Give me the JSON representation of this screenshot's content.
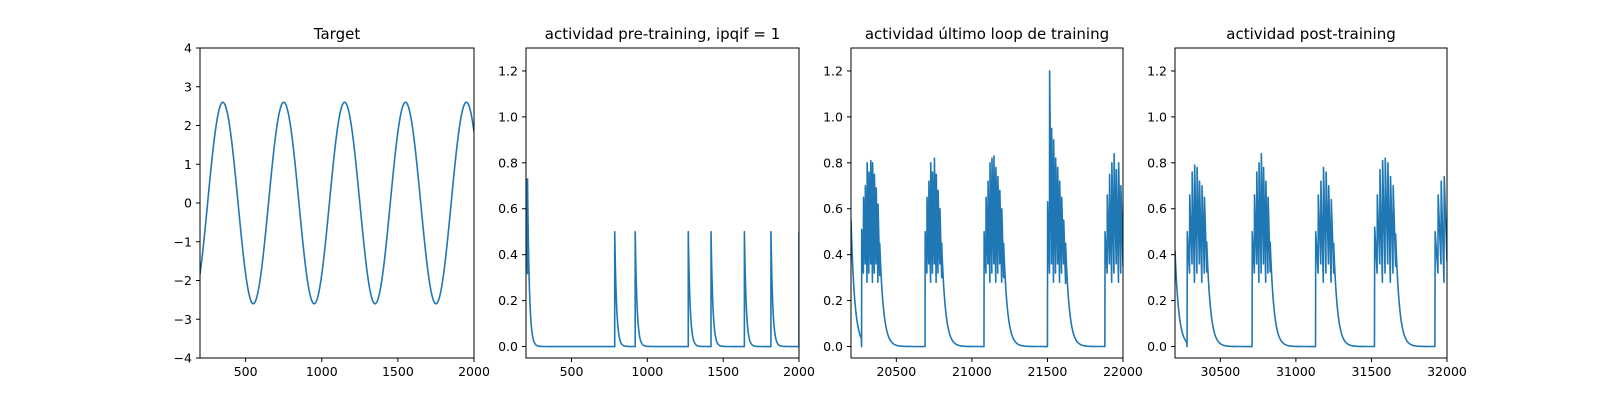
{
  "figure": {
    "background": "#ffffff",
    "line_color": "#1f77b4"
  },
  "chart_data": [
    {
      "type": "line",
      "title": "Target",
      "xlim": [
        200,
        2000
      ],
      "ylim": [
        -4,
        4
      ],
      "xticks": [
        500,
        1000,
        1500,
        2000
      ],
      "yticks": [
        -4,
        -3,
        -2,
        -1,
        0,
        1,
        2,
        3,
        4
      ],
      "xtick_labels": [
        "500",
        "1000",
        "1500",
        "2000"
      ],
      "ytick_labels": [
        "−4",
        "−3",
        "−2",
        "−1",
        "0",
        "1",
        "2",
        "3",
        "4"
      ],
      "grid": false,
      "series": [
        {
          "kind": "sine",
          "amplitude": 2.6,
          "period": 400,
          "peaks_at": [
            350,
            750,
            1150,
            1550,
            1950
          ],
          "value_at_start": -2.05,
          "value_at_end": 2.1
        }
      ]
    },
    {
      "type": "line",
      "title": "actividad pre-training, ipqif = 1",
      "xlim": [
        200,
        2000
      ],
      "ylim": [
        -0.05,
        1.3
      ],
      "xticks": [
        500,
        1000,
        1500,
        2000
      ],
      "yticks": [
        0.0,
        0.2,
        0.4,
        0.6,
        0.8,
        1.0,
        1.2
      ],
      "xtick_labels": [
        "500",
        "1000",
        "1500",
        "2000"
      ],
      "ytick_labels": [
        "0.0",
        "0.2",
        "0.4",
        "0.6",
        "0.8",
        "1.0",
        "1.2"
      ],
      "grid": false,
      "series": [
        {
          "kind": "decaying_spikes",
          "baseline": 0.0,
          "decay_time": 12,
          "spike_times": [
            200,
            210,
            785,
            920,
            1270,
            1420,
            1640,
            1815,
            2000
          ],
          "spike_heights": [
            0.73,
            0.73,
            0.5,
            0.5,
            0.5,
            0.5,
            0.5,
            0.5,
            0.5
          ]
        }
      ]
    },
    {
      "type": "line",
      "title": "actividad último loop de training",
      "xlim": [
        20200,
        22000
      ],
      "ylim": [
        -0.05,
        1.3
      ],
      "xticks": [
        20500,
        21000,
        21500,
        22000
      ],
      "yticks": [
        0.0,
        0.2,
        0.4,
        0.6,
        0.8,
        1.0,
        1.2
      ],
      "xtick_labels": [
        "20500",
        "21000",
        "21500",
        "22000"
      ],
      "ytick_labels": [
        "0.0",
        "0.2",
        "0.4",
        "0.6",
        "0.8",
        "1.0",
        "1.2"
      ],
      "grid": false,
      "series": [
        {
          "kind": "bursts",
          "baseline": 0.0,
          "initial_value": 0.55,
          "decay_time": 25,
          "bursts": [
            {
              "start": 20270,
              "end": 20390,
              "peaks": [
                0.51,
                0.65,
                0.7,
                0.8,
                0.76,
                0.81,
                0.8,
                0.75,
                0.69,
                0.62
              ]
            },
            {
              "start": 20690,
              "end": 20800,
              "peaks": [
                0.5,
                0.65,
                0.72,
                0.8,
                0.76,
                0.82,
                0.75,
                0.68,
                0.6
              ]
            },
            {
              "start": 21080,
              "end": 21210,
              "peaks": [
                0.5,
                0.65,
                0.72,
                0.8,
                0.82,
                0.83,
                0.78,
                0.74,
                0.68,
                0.6
              ]
            },
            {
              "start": 21500,
              "end": 21620,
              "peaks": [
                0.63,
                1.2,
                0.95,
                0.9,
                0.82,
                0.78,
                0.72,
                0.65,
                0.55
              ]
            },
            {
              "start": 21880,
              "end": 22000,
              "peaks": [
                0.5,
                0.66,
                0.75,
                0.8,
                0.84,
                0.77,
                0.8,
                0.7
              ]
            }
          ]
        }
      ]
    },
    {
      "type": "line",
      "title": "actividad post-training",
      "xlim": [
        30200,
        32000
      ],
      "ylim": [
        -0.05,
        1.3
      ],
      "xticks": [
        30500,
        31000,
        31500,
        32000
      ],
      "yticks": [
        0.0,
        0.2,
        0.4,
        0.6,
        0.8,
        1.0,
        1.2
      ],
      "xtick_labels": [
        "30500",
        "31000",
        "31500",
        "32000"
      ],
      "ytick_labels": [
        "0.0",
        "0.2",
        "0.4",
        "0.6",
        "0.8",
        "1.0",
        "1.2"
      ],
      "grid": false,
      "series": [
        {
          "kind": "bursts",
          "baseline": 0.0,
          "initial_value": 0.42,
          "decay_time": 25,
          "bursts": [
            {
              "start": 30280,
              "end": 30410,
              "peaks": [
                0.5,
                0.66,
                0.76,
                0.79,
                0.78,
                0.72,
                0.7,
                0.65
              ]
            },
            {
              "start": 30710,
              "end": 30830,
              "peaks": [
                0.5,
                0.66,
                0.76,
                0.8,
                0.84,
                0.78,
                0.72,
                0.65
              ]
            },
            {
              "start": 31130,
              "end": 31250,
              "peaks": [
                0.5,
                0.66,
                0.72,
                0.78,
                0.76,
                0.7,
                0.64
              ]
            },
            {
              "start": 31520,
              "end": 31660,
              "peaks": [
                0.52,
                0.66,
                0.77,
                0.81,
                0.82,
                0.8,
                0.74,
                0.7
              ]
            },
            {
              "start": 31920,
              "end": 32000,
              "peaks": [
                0.5,
                0.66,
                0.72,
                0.74
              ]
            }
          ]
        }
      ]
    }
  ]
}
